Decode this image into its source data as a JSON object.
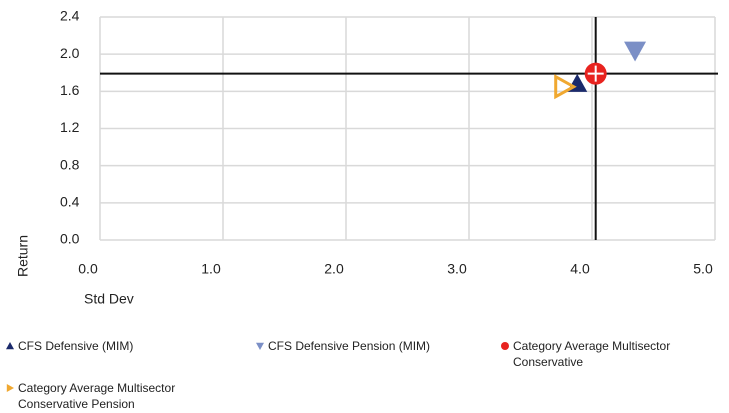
{
  "chart_data": {
    "type": "scatter",
    "x_label": "Std Dev",
    "y_label": "Return",
    "xlim": [
      0,
      5
    ],
    "ylim": [
      0,
      2.4
    ],
    "xticks": [
      {
        "value": 0,
        "label": "0.0"
      },
      {
        "value": 1,
        "label": "1.0"
      },
      {
        "value": 2,
        "label": "2.0"
      },
      {
        "value": 3,
        "label": "3.0"
      },
      {
        "value": 4,
        "label": "4.0"
      },
      {
        "value": 5,
        "label": "5.0"
      }
    ],
    "yticks": [
      {
        "value": 0,
        "label": "0.0"
      },
      0.4,
      0.8,
      1.2,
      1.6,
      {
        "value": 2,
        "label": "2.0"
      },
      2.4
    ],
    "grid": true,
    "series": [
      {
        "name": "CFS Defensive (MIM)",
        "color": "#1b2a6b",
        "marker": "triangle-up",
        "x": [
          3.88
        ],
        "values": [
          1.68
        ]
      },
      {
        "name": "CFS Defensive Pension (MIM)",
        "color": "#7b8fc6",
        "marker": "triangle-down",
        "x": [
          4.35
        ],
        "values": [
          2.04
        ]
      },
      {
        "name": "Category Average Multisector Conservative",
        "color": "#e8231f",
        "marker": "crosshair-circle",
        "x": [
          4.03
        ],
        "values": [
          1.79
        ]
      },
      {
        "name": "Category Average Multisector Conservative Pension",
        "color": "#f0a830",
        "marker": "triangle-right",
        "x": [
          3.77
        ],
        "values": [
          1.65
        ]
      }
    ]
  }
}
